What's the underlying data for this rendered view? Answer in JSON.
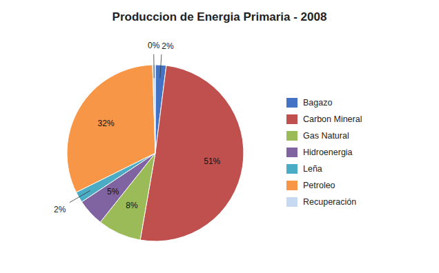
{
  "chart_data": {
    "type": "pie",
    "title": "Produccion de Energia Primaria - 2008",
    "categories": [
      "Bagazo",
      "Carbon Mineral",
      "Gas Natural",
      "Hidroenergia",
      "Leña",
      "Petroleo",
      "Recuperación"
    ],
    "values": [
      2,
      51,
      8,
      5,
      2,
      32,
      0.5
    ],
    "value_labels": [
      "2%",
      "51%",
      "8%",
      "5%",
      "2%",
      "32%",
      "0%"
    ],
    "colors": [
      "#4472C4",
      "#C0504D",
      "#9BBB59",
      "#8064A2",
      "#4BACC6",
      "#F79646",
      "#C6D9F1"
    ],
    "data_labels": true,
    "legend": "right"
  }
}
